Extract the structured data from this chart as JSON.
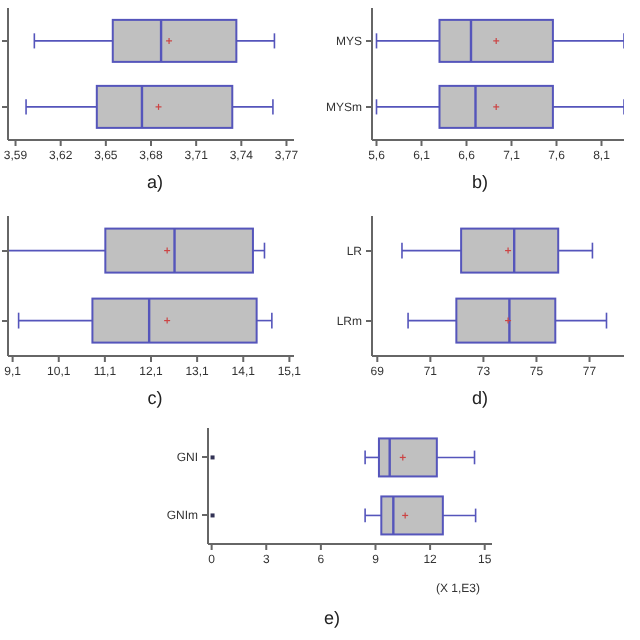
{
  "chart_data": [
    {
      "type": "box",
      "title": "a)",
      "orientation": "horizontal",
      "categories": [
        null,
        null
      ],
      "series": [
        {
          "color": "#c0c0c0",
          "boxes": [
            {
              "low": 3.6025,
              "q1": 3.6546,
              "median": 3.6867,
              "q3": 3.7367,
              "high": 3.762,
              "mean": 3.692
            },
            {
              "low": 3.597,
              "q1": 3.644,
              "median": 3.674,
              "q3": 3.734,
              "high": 3.761,
              "mean": 3.685
            }
          ]
        }
      ],
      "xlim": [
        3.585,
        3.775
      ],
      "xticks": [
        {
          "value": 3.59,
          "label": "3,59"
        },
        {
          "value": 3.62,
          "label": "3,62"
        },
        {
          "value": 3.65,
          "label": "3,65"
        },
        {
          "value": 3.68,
          "label": "3,68"
        },
        {
          "value": 3.71,
          "label": "3,71"
        },
        {
          "value": 3.74,
          "label": "3,74"
        },
        {
          "value": 3.77,
          "label": "3,77"
        }
      ]
    },
    {
      "type": "box",
      "title": "b)",
      "orientation": "horizontal",
      "categories": [
        "MYS",
        "MYSm"
      ],
      "series": [
        {
          "color": "#c0c0c0",
          "boxes": [
            {
              "low": 5.6,
              "q1": 6.3,
              "median": 6.65,
              "q3": 7.56,
              "high": 8.35,
              "mean": 6.93
            },
            {
              "low": 5.6,
              "q1": 6.3,
              "median": 6.7,
              "q3": 7.56,
              "high": 8.35,
              "mean": 6.93
            }
          ]
        }
      ],
      "xlim": [
        5.55,
        8.35
      ],
      "xticks": [
        {
          "value": 5.6,
          "label": "5,6"
        },
        {
          "value": 6.1,
          "label": "6,1"
        },
        {
          "value": 6.6,
          "label": "6,6"
        },
        {
          "value": 7.1,
          "label": "7,1"
        },
        {
          "value": 7.6,
          "label": "7,6"
        },
        {
          "value": 8.1,
          "label": "8,1"
        }
      ]
    },
    {
      "type": "box",
      "title": "c)",
      "orientation": "horizontal",
      "categories": [
        null,
        null
      ],
      "series": [
        {
          "color": "#c0c0c0",
          "boxes": [
            {
              "low": 9.0,
              "q1": 11.11,
              "median": 12.61,
              "q3": 14.31,
              "high": 14.56,
              "mean": 12.45
            },
            {
              "low": 9.23,
              "q1": 10.83,
              "median": 12.06,
              "q3": 14.39,
              "high": 14.72,
              "mean": 12.45
            }
          ]
        }
      ],
      "xlim": [
        9.0,
        15.2
      ],
      "xticks": [
        {
          "value": 9.1,
          "label": "9,1"
        },
        {
          "value": 10.1,
          "label": "10,1"
        },
        {
          "value": 11.1,
          "label": "11,1"
        },
        {
          "value": 12.1,
          "label": "12,1"
        },
        {
          "value": 13.1,
          "label": "13,1"
        },
        {
          "value": 14.1,
          "label": "14,1"
        },
        {
          "value": 15.1,
          "label": "15,1"
        }
      ]
    },
    {
      "type": "box",
      "title": "d)",
      "orientation": "horizontal",
      "categories": [
        "LR",
        "LRm"
      ],
      "series": [
        {
          "color": "#c0c0c0",
          "boxes": [
            {
              "low": 69.93,
              "q1": 72.16,
              "median": 74.16,
              "q3": 75.82,
              "high": 77.11,
              "mean": 73.93
            },
            {
              "low": 70.16,
              "q1": 71.98,
              "median": 73.98,
              "q3": 75.71,
              "high": 77.64,
              "mean": 73.93
            }
          ]
        }
      ],
      "xlim": [
        68.8,
        78.3
      ],
      "xticks": [
        69,
        71,
        73,
        75,
        77
      ]
    },
    {
      "type": "box",
      "title": "e)",
      "xlabel": "(X 1,E3)",
      "orientation": "horizontal",
      "categories": [
        "GNI",
        "GNIm"
      ],
      "series": [
        {
          "color": "#c0c0c0",
          "boxes": [
            {
              "low": 8.43,
              "q1": 9.19,
              "median": 9.78,
              "q3": 12.37,
              "high": 14.44,
              "mean": 10.5,
              "outliers": [
                0.05
              ]
            },
            {
              "low": 8.43,
              "q1": 9.32,
              "median": 9.98,
              "q3": 12.7,
              "high": 14.5,
              "mean": 10.63,
              "outliers": [
                0.05
              ]
            }
          ]
        }
      ],
      "xlim": [
        -0.2,
        15.4
      ],
      "xticks": [
        0,
        3,
        6,
        9,
        12,
        15
      ]
    }
  ]
}
